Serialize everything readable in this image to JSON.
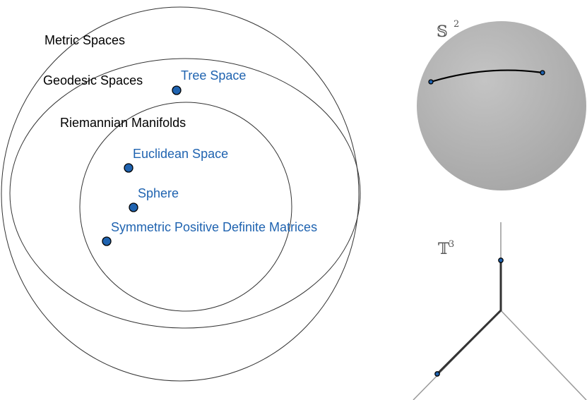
{
  "venn": {
    "sets": [
      "Metric Spaces",
      "Geodesic Spaces",
      "Riemannian Manifolds"
    ],
    "examples": [
      "Tree Space",
      "Euclidean Space",
      "Sphere",
      "Symmetric Positive Definite Matrices"
    ]
  },
  "sphere_panel": {
    "symbol": "𝕊",
    "superscript": "2"
  },
  "tree_panel": {
    "symbol": "𝕋",
    "superscript": "3"
  }
}
